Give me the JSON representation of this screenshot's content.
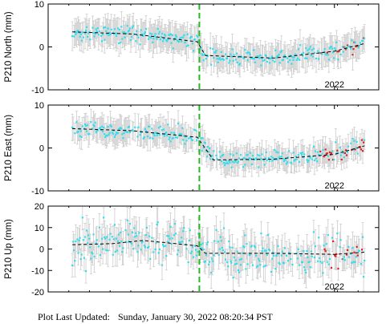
{
  "footer": {
    "label": "Plot Last Updated:",
    "timestamp": "Sunday, January 30, 2022 08:20:34 PST"
  },
  "colors": {
    "points": "#33ddee",
    "recent_points": "#dd2222",
    "error_bars": "#cccccc",
    "trend": "#000000",
    "event_line": "#22bb22"
  },
  "chart_data": [
    {
      "type": "scatter",
      "ylabel": "P210 North (mm)",
      "ylim": [
        -10,
        10
      ],
      "yticks": [
        -10,
        0,
        10
      ],
      "xlim": [
        2020.58,
        2022.22
      ],
      "xticks": [
        {
          "value": 2022.0,
          "label": "2022"
        }
      ],
      "event_x": 2021.33,
      "trend": [
        [
          2020.7,
          3.5
        ],
        [
          2021.0,
          3.0
        ],
        [
          2021.32,
          1.2
        ],
        [
          2021.36,
          -2.0
        ],
        [
          2021.7,
          -2.6
        ],
        [
          2022.0,
          -1.0
        ],
        [
          2022.15,
          0.8
        ]
      ],
      "error_bar": 3.0,
      "recent_from": 2021.93,
      "noise": 1.0,
      "seed": 11
    },
    {
      "type": "scatter",
      "ylabel": "P210 East (mm)",
      "ylim": [
        -10,
        10
      ],
      "yticks": [
        -10,
        0,
        10
      ],
      "xlim": [
        2020.58,
        2022.22
      ],
      "xticks": [
        {
          "value": 2022.0,
          "label": "2022"
        }
      ],
      "event_x": 2021.33,
      "trend": [
        [
          2020.7,
          4.5
        ],
        [
          2021.0,
          4.0
        ],
        [
          2021.32,
          2.5
        ],
        [
          2021.4,
          -2.8
        ],
        [
          2021.7,
          -2.6
        ],
        [
          2022.0,
          -1.5
        ],
        [
          2022.15,
          0.5
        ]
      ],
      "error_bar": 2.8,
      "recent_from": 2021.93,
      "noise": 1.0,
      "seed": 23
    },
    {
      "type": "scatter",
      "ylabel": "P210 Up (mm)",
      "ylim": [
        -20,
        20
      ],
      "yticks": [
        -20,
        -10,
        0,
        10,
        20
      ],
      "xlim": [
        2020.58,
        2022.22
      ],
      "xticks": [
        {
          "value": 2022.0,
          "label": "2022"
        }
      ],
      "event_x": 2021.33,
      "trend": [
        [
          2020.7,
          2.0
        ],
        [
          2020.9,
          2.5
        ],
        [
          2021.05,
          4.0
        ],
        [
          2021.32,
          1.5
        ],
        [
          2021.36,
          -2.0
        ],
        [
          2021.7,
          -2.0
        ],
        [
          2022.0,
          -2.5
        ],
        [
          2022.15,
          -1.5
        ]
      ],
      "error_bar": 6.5,
      "recent_from": 2021.93,
      "noise": 5.0,
      "seed": 37
    }
  ]
}
